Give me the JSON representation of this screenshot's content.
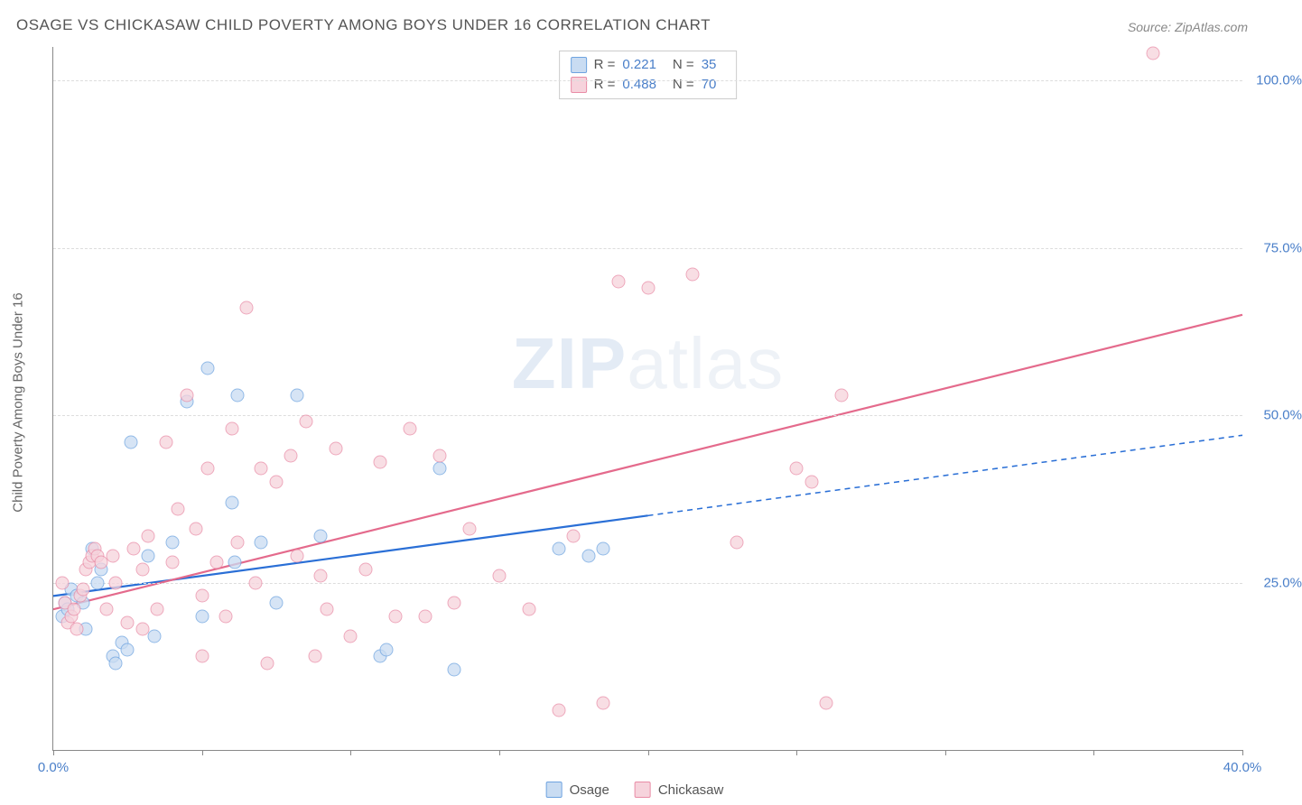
{
  "title": "OSAGE VS CHICKASAW CHILD POVERTY AMONG BOYS UNDER 16 CORRELATION CHART",
  "source": "Source: ZipAtlas.com",
  "ylabel": "Child Poverty Among Boys Under 16",
  "watermark_a": "ZIP",
  "watermark_b": "atlas",
  "chart": {
    "type": "scatter",
    "xlim": [
      0,
      40
    ],
    "ylim": [
      0,
      105
    ],
    "x_ticks": [
      0,
      5,
      10,
      15,
      20,
      25,
      30,
      35,
      40
    ],
    "x_tick_labels_shown": {
      "0": "0.0%",
      "40": "40.0%"
    },
    "y_ticks": [
      25,
      50,
      75,
      100
    ],
    "y_tick_labels": [
      "25.0%",
      "50.0%",
      "75.0%",
      "100.0%"
    ],
    "background_color": "#ffffff",
    "grid_color": "#dddddd",
    "axis_color": "#888888",
    "tick_label_color": "#4a7fc9",
    "title_color": "#555555",
    "title_fontsize": 17,
    "label_fontsize": 15,
    "point_radius": 7.5,
    "point_opacity": 0.75,
    "line_width": 2.2
  },
  "series": [
    {
      "name": "Osage",
      "fill_color": "#c9dcf2",
      "stroke_color": "#6ea3e0",
      "line_color": "#2a6fd6",
      "R": "0.221",
      "N": "35",
      "trend": {
        "x1": 0,
        "y1": 23,
        "x2_solid": 20,
        "y2_solid": 35,
        "x2": 40,
        "y2": 47
      },
      "points": [
        [
          0.3,
          20
        ],
        [
          0.4,
          22
        ],
        [
          0.5,
          21
        ],
        [
          0.6,
          24
        ],
        [
          0.8,
          23
        ],
        [
          1.0,
          22
        ],
        [
          1.1,
          18
        ],
        [
          1.3,
          30
        ],
        [
          1.5,
          25
        ],
        [
          1.6,
          27
        ],
        [
          2.0,
          14
        ],
        [
          2.1,
          13
        ],
        [
          2.3,
          16
        ],
        [
          2.5,
          15
        ],
        [
          2.6,
          46
        ],
        [
          3.2,
          29
        ],
        [
          3.4,
          17
        ],
        [
          4.0,
          31
        ],
        [
          4.5,
          52
        ],
        [
          5.0,
          20
        ],
        [
          5.2,
          57
        ],
        [
          6.0,
          37
        ],
        [
          6.1,
          28
        ],
        [
          6.2,
          53
        ],
        [
          7.0,
          31
        ],
        [
          8.2,
          53
        ],
        [
          9.0,
          32
        ],
        [
          11.0,
          14
        ],
        [
          11.2,
          15
        ],
        [
          13.0,
          42
        ],
        [
          13.5,
          12
        ],
        [
          17.0,
          30
        ],
        [
          18.0,
          29
        ],
        [
          18.5,
          30
        ],
        [
          7.5,
          22
        ]
      ]
    },
    {
      "name": "Chickasaw",
      "fill_color": "#f6d3dc",
      "stroke_color": "#e98ca6",
      "line_color": "#e46a8c",
      "R": "0.488",
      "N": "70",
      "trend": {
        "x1": 0,
        "y1": 21,
        "x2_solid": 40,
        "y2_solid": 65,
        "x2": 40,
        "y2": 65
      },
      "points": [
        [
          0.3,
          25
        ],
        [
          0.4,
          22
        ],
        [
          0.5,
          19
        ],
        [
          0.6,
          20
        ],
        [
          0.7,
          21
        ],
        [
          0.8,
          18
        ],
        [
          0.9,
          23
        ],
        [
          1.0,
          24
        ],
        [
          1.1,
          27
        ],
        [
          1.2,
          28
        ],
        [
          1.3,
          29
        ],
        [
          1.4,
          30
        ],
        [
          1.5,
          29
        ],
        [
          1.6,
          28
        ],
        [
          1.8,
          21
        ],
        [
          2.0,
          29
        ],
        [
          2.1,
          25
        ],
        [
          2.5,
          19
        ],
        [
          2.7,
          30
        ],
        [
          3.0,
          18
        ],
        [
          3.2,
          32
        ],
        [
          3.5,
          21
        ],
        [
          3.8,
          46
        ],
        [
          4.0,
          28
        ],
        [
          4.2,
          36
        ],
        [
          4.5,
          53
        ],
        [
          5.0,
          23
        ],
        [
          5.2,
          42
        ],
        [
          5.5,
          28
        ],
        [
          5.8,
          20
        ],
        [
          6.0,
          48
        ],
        [
          6.2,
          31
        ],
        [
          6.5,
          66
        ],
        [
          6.8,
          25
        ],
        [
          7.0,
          42
        ],
        [
          7.2,
          13
        ],
        [
          7.5,
          40
        ],
        [
          8.0,
          44
        ],
        [
          8.2,
          29
        ],
        [
          8.5,
          49
        ],
        [
          9.0,
          26
        ],
        [
          9.2,
          21
        ],
        [
          9.5,
          45
        ],
        [
          10.0,
          17
        ],
        [
          10.5,
          27
        ],
        [
          11.0,
          43
        ],
        [
          11.5,
          20
        ],
        [
          12.0,
          48
        ],
        [
          12.5,
          20
        ],
        [
          13.0,
          44
        ],
        [
          13.5,
          22
        ],
        [
          14.0,
          33
        ],
        [
          15.0,
          26
        ],
        [
          16.0,
          21
        ],
        [
          17.0,
          6
        ],
        [
          17.5,
          32
        ],
        [
          18.5,
          7
        ],
        [
          19.0,
          70
        ],
        [
          20.0,
          69
        ],
        [
          21.5,
          71
        ],
        [
          23.0,
          31
        ],
        [
          25.0,
          42
        ],
        [
          26.0,
          7
        ],
        [
          26.5,
          53
        ],
        [
          25.5,
          40
        ],
        [
          37.0,
          104
        ],
        [
          5.0,
          14
        ],
        [
          8.8,
          14
        ],
        [
          4.8,
          33
        ],
        [
          3.0,
          27
        ]
      ]
    }
  ],
  "legend_bottom": [
    {
      "label": "Osage",
      "fill": "#c9dcf2",
      "stroke": "#6ea3e0"
    },
    {
      "label": "Chickasaw",
      "fill": "#f6d3dc",
      "stroke": "#e98ca6"
    }
  ]
}
